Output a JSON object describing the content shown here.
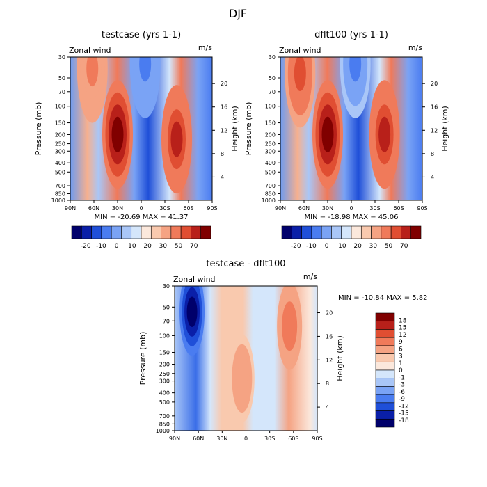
{
  "figure_title": "DJF",
  "colors": {
    "full": [
      "#00006b",
      "#0a1fa8",
      "#1f4fd8",
      "#4a7cf0",
      "#7aa3f5",
      "#a9c6f7",
      "#d4e6fb",
      "#fbe8dc",
      "#f9c9ae",
      "#f5a383",
      "#f07a5a",
      "#e04e32",
      "#b8201a",
      "#800000"
    ],
    "diff": [
      "#00006b",
      "#0a1fa8",
      "#1f4fd8",
      "#4a7cf0",
      "#7aa3f5",
      "#a9c6f7",
      "#d4e6fb",
      "#fbe8dc",
      "#f9c9ae",
      "#f5a383",
      "#f07a5a",
      "#e04e32",
      "#b8201a",
      "#800000"
    ]
  },
  "chart_data": [
    {
      "type": "heatmap",
      "title": "testcase (yrs 1-1)",
      "left_label": "Zonal wind",
      "right_label": "m/s",
      "xlabel": "",
      "ylabel": "Pressure (mb)",
      "ylabel_right": "Height (km)",
      "x_ticks": [
        "90N",
        "60N",
        "30N",
        "0",
        "30S",
        "60S",
        "90S"
      ],
      "y_ticks": [
        "30",
        "50",
        "70",
        "100",
        "150",
        "200",
        "250",
        "300",
        "400",
        "500",
        "700",
        "850",
        "1000"
      ],
      "y_ticks_right": [
        "4",
        "8",
        "12",
        "16",
        "20"
      ],
      "stats": "MIN = -20.69   MAX =  41.37",
      "colorbar_labels": [
        "-20",
        "-10",
        "0",
        "10",
        "20",
        "30",
        "50",
        "70"
      ],
      "features": [
        {
          "lat": 62,
          "logp": 1.6,
          "value": 22
        },
        {
          "lat": 30,
          "logp": 2.3,
          "value": 41.37
        },
        {
          "lat": -45,
          "logp": 2.35,
          "value": 35
        },
        {
          "lat": -5,
          "logp": 1.55,
          "value": -20.69
        }
      ]
    },
    {
      "type": "heatmap",
      "title": "dflt100 (yrs 1-1)",
      "left_label": "Zonal wind",
      "right_label": "m/s",
      "xlabel": "",
      "ylabel": "Pressure (mb)",
      "ylabel_right": "Height (km)",
      "x_ticks": [
        "90N",
        "60N",
        "30N",
        "0",
        "30S",
        "60S",
        "90S"
      ],
      "y_ticks": [
        "30",
        "50",
        "70",
        "100",
        "150",
        "200",
        "250",
        "300",
        "400",
        "500",
        "700",
        "850",
        "1000"
      ],
      "y_ticks_right": [
        "4",
        "8",
        "12",
        "16",
        "20"
      ],
      "stats": "MIN = -18.98   MAX =  45.06",
      "colorbar_labels": [
        "-20",
        "-10",
        "0",
        "10",
        "20",
        "30",
        "50",
        "70"
      ],
      "features": [
        {
          "lat": 65,
          "logp": 1.65,
          "value": 28
        },
        {
          "lat": 30,
          "logp": 2.3,
          "value": 45.06
        },
        {
          "lat": -42,
          "logp": 2.3,
          "value": 35
        },
        {
          "lat": -5,
          "logp": 1.55,
          "value": -18.98
        }
      ]
    },
    {
      "type": "heatmap",
      "title": "testcase - dflt100",
      "left_label": "Zonal wind",
      "right_label": "m/s",
      "xlabel": "",
      "ylabel": "Pressure (mb)",
      "ylabel_right": "Height (km)",
      "x_ticks": [
        "90N",
        "60N",
        "30N",
        "0",
        "30S",
        "60S",
        "90S"
      ],
      "y_ticks": [
        "30",
        "50",
        "70",
        "100",
        "150",
        "200",
        "250",
        "300",
        "400",
        "500",
        "700",
        "850",
        "1000"
      ],
      "y_ticks_right": [
        "4",
        "8",
        "12",
        "16",
        "20"
      ],
      "stats": "MIN = -10.84   MAX =   5.82",
      "colorbar_labels": [
        "18",
        "15",
        "12",
        "9",
        "6",
        "3",
        "1",
        "0",
        "-1",
        "-3",
        "-6",
        "-9",
        "-12",
        "-15",
        "-18"
      ],
      "features": [
        {
          "lat": 68,
          "logp": 1.75,
          "value": -10.84
        },
        {
          "lat": -55,
          "logp": 1.9,
          "value": 5.82
        },
        {
          "lat": 5,
          "logp": 2.45,
          "value": 4
        }
      ]
    }
  ]
}
